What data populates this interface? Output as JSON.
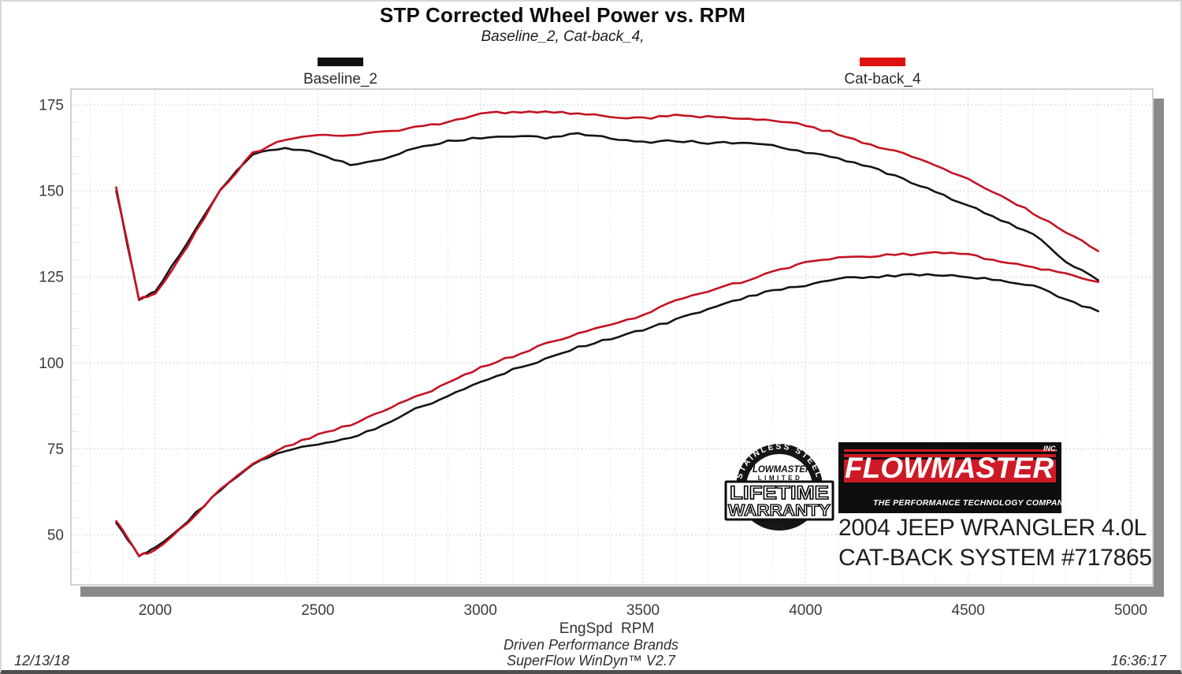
{
  "header": {
    "title": "STP Corrected Wheel Power vs. RPM",
    "subtitle": "Baseline_2, Cat-back_4,"
  },
  "legend": [
    {
      "label": "Baseline_2",
      "color": "#111111"
    },
    {
      "label": "Cat-back_4",
      "color": "#dd1111"
    }
  ],
  "axis": {
    "x_label": "EngSpd  RPM"
  },
  "branding": {
    "badge": {
      "arc_text": "STAINLESS STEEL",
      "brand": "FLOWMASTER",
      "limited": "LIMITED",
      "line1": "LIFETIME",
      "line2": "WARRANTY"
    },
    "logo": {
      "name": "FLOWMASTER",
      "inc": "INC.",
      "tagline": "THE PERFORMANCE TECHNOLOGY COMPANY"
    },
    "vehicle_line1": "2004 JEEP WRANGLER 4.0L",
    "vehicle_line2": "CAT-BACK SYSTEM #717865"
  },
  "footer": {
    "brand_line": "Driven Performance Brands",
    "software_line": "SuperFlow WinDyn™ V2.7",
    "date": "12/13/18",
    "time": "16:36:17"
  },
  "colors": {
    "baseline_line": "#141414",
    "catback_line": "#c41322",
    "legend_black": "#111111",
    "legend_red": "#dd1111",
    "logo_red": "#ce1a26",
    "shadow_gray": "#8a8a8a",
    "grid_major": "#c9c9c9",
    "grid_minor": "#dedede",
    "plot_border": "#b4b4b4",
    "tick_text": "#3b3b3b"
  },
  "chart_data": {
    "type": "line",
    "title": "STP Corrected Wheel Power vs. RPM",
    "subtitle": "Baseline_2, Cat-back_4,",
    "xlabel": "EngSpd RPM",
    "ylabel": "",
    "xlim": [
      1740,
      5070
    ],
    "ylim": [
      35,
      180
    ],
    "x_ticks": [
      2000,
      2500,
      3000,
      3500,
      4000,
      4500,
      5000
    ],
    "y_ticks": [
      50,
      75,
      100,
      125,
      150,
      175
    ],
    "x_minor_step": 100,
    "y_minor_step": 5,
    "grid": "dotted",
    "legend_position": "top",
    "x": [
      1880,
      1950,
      2000,
      2100,
      2200,
      2300,
      2400,
      2500,
      2600,
      2700,
      2800,
      2900,
      3000,
      3100,
      3200,
      3300,
      3400,
      3500,
      3600,
      3700,
      3800,
      3900,
      4000,
      4100,
      4200,
      4300,
      4400,
      4500,
      4600,
      4700,
      4800,
      4900
    ],
    "series": [
      {
        "name": "Baseline_2 torque (upper black)",
        "color": "#141414",
        "values": [
          150,
          118.5,
          120.5,
          135,
          150.5,
          160.5,
          162.5,
          161,
          157.5,
          159.5,
          162.5,
          164.5,
          165.5,
          166,
          165.5,
          166.5,
          165.5,
          164,
          164.5,
          164,
          164,
          163,
          161,
          159.5,
          157,
          153.5,
          149.5,
          146,
          141.5,
          137.5,
          129.5,
          124
        ]
      },
      {
        "name": "Cat-back_4 torque (upper red)",
        "color": "#c41322",
        "values": [
          151,
          118.5,
          120,
          134,
          150,
          161,
          165,
          166,
          166,
          167,
          168.5,
          170,
          172.5,
          173,
          173,
          172.5,
          171.5,
          171,
          172,
          171.5,
          171,
          170.5,
          169,
          166.5,
          163.5,
          161,
          157.5,
          153.5,
          148.5,
          143.5,
          138,
          132.5
        ]
      },
      {
        "name": "Baseline_2 power (lower black)",
        "color": "#141414",
        "values": [
          53.5,
          44,
          46,
          54,
          63,
          70.5,
          74.5,
          76.5,
          78,
          82,
          86.5,
          90.5,
          94.5,
          98,
          101,
          104.5,
          107,
          109.5,
          112.5,
          115.5,
          118.5,
          121,
          122.5,
          124.5,
          125,
          125.5,
          125.5,
          125,
          124,
          122.5,
          118.5,
          115
        ]
      },
      {
        "name": "Cat-back_4 power (lower red)",
        "color": "#c41322",
        "values": [
          54,
          44,
          45.5,
          53.5,
          63,
          70.5,
          75.5,
          79,
          82,
          86,
          90,
          94,
          98.5,
          102,
          105.5,
          108.5,
          111,
          114,
          118,
          121,
          123.5,
          126.5,
          129,
          130.5,
          131,
          131.5,
          132,
          131.5,
          129.5,
          127.5,
          126,
          123.5
        ]
      }
    ]
  }
}
